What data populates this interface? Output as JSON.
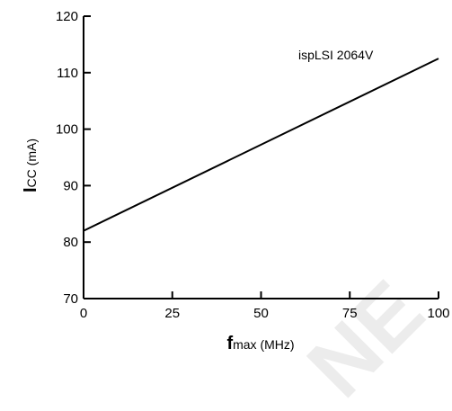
{
  "chart_data": {
    "type": "line",
    "title": "",
    "xlabel": {
      "main": "f",
      "sub": "max (MHz)"
    },
    "ylabel": {
      "main": "I",
      "sub": "CC (mA)"
    },
    "xlim": [
      0,
      100
    ],
    "ylim": [
      70,
      120
    ],
    "xticks": [
      0,
      25,
      50,
      75,
      100
    ],
    "yticks": [
      70,
      80,
      90,
      100,
      110,
      120
    ],
    "grid": false,
    "series": [
      {
        "name": "ispLSI 2064V",
        "x": [
          0,
          100
        ],
        "y": [
          82,
          112.5
        ]
      }
    ],
    "annotations": [
      {
        "text": "ispLSI 2064V"
      }
    ],
    "watermark": "NE"
  }
}
